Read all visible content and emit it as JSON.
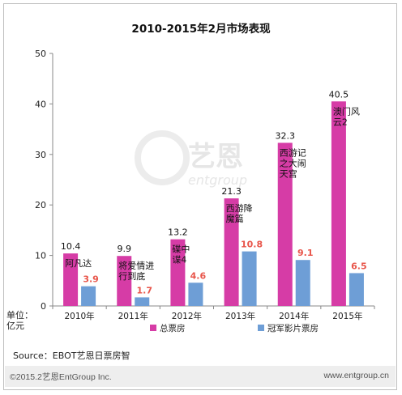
{
  "chart_data": {
    "type": "bar",
    "title": "2010-2015年2月市场表现",
    "ylabel": "单位：亿元",
    "ylabel_lines": [
      "单位：",
      "亿元"
    ],
    "ylim": [
      0,
      50
    ],
    "yticks": [
      0,
      10,
      20,
      30,
      40,
      50
    ],
    "grid": false,
    "legend_position": "bottom",
    "categories": [
      "2010年",
      "2011年",
      "2012年",
      "2013年",
      "2014年",
      "2015年"
    ],
    "series": [
      {
        "name": "总票房",
        "color": "#d63ca6",
        "values": [
          10.4,
          9.9,
          13.2,
          21.3,
          32.3,
          40.5
        ]
      },
      {
        "name": "冠军影片票房",
        "color": "#6e9ed6",
        "values": [
          3.9,
          1.7,
          4.6,
          10.8,
          9.1,
          6.5
        ]
      }
    ],
    "annotations": [
      {
        "category": "2010年",
        "lines": [
          "阿凡达"
        ]
      },
      {
        "category": "2011年",
        "lines": [
          "将爱情进",
          "行到底"
        ]
      },
      {
        "category": "2012年",
        "lines": [
          "碟中",
          "谍4"
        ]
      },
      {
        "category": "2013年",
        "lines": [
          "西游降",
          "魔篇"
        ]
      },
      {
        "category": "2014年",
        "lines": [
          "西游记",
          "之大闹",
          "天宫"
        ]
      },
      {
        "category": "2015年",
        "lines": [
          "澳门风",
          "云2"
        ]
      }
    ]
  },
  "source": "Source：EBOT艺恩日票房智",
  "watermark": "艺恩 entgroup",
  "footer": {
    "left": "©2015.2艺恩EntGroup Inc.",
    "right": "www.entgroup.cn"
  }
}
